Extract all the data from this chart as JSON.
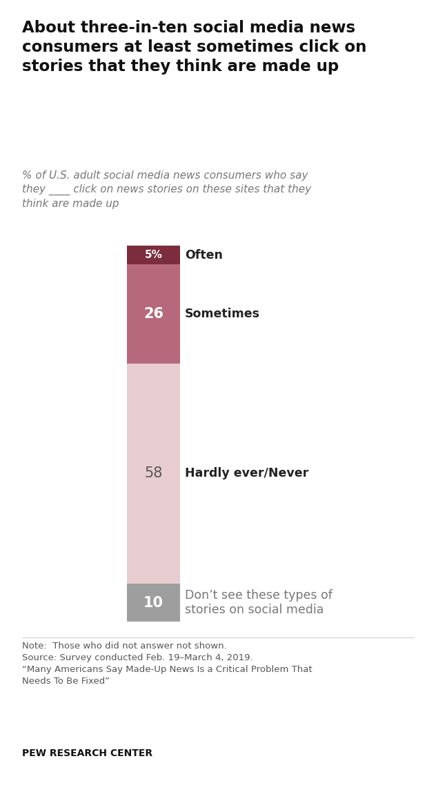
{
  "title": "About three-in-ten social media news\nconsumers at least sometimes click on\nstories that they think are made up",
  "subtitle": "% of U.S. adult social media news consumers who say\nthey ____ click on news stories on these sites that they\nthink are made up",
  "categories": [
    "Often",
    "Sometimes",
    "Hardly ever/Never",
    "Don’t see these types of\nstories on social media"
  ],
  "values": [
    5,
    26,
    58,
    10
  ],
  "colors": [
    "#7b2d3e",
    "#b5697a",
    "#e8cdd0",
    "#9e9e9e"
  ],
  "bar_labels": [
    "5%",
    "26",
    "58",
    "10"
  ],
  "label_colors": [
    "#ffffff",
    "#ffffff",
    "#555555",
    "#ffffff"
  ],
  "label_fontweights": [
    "bold",
    "bold",
    "normal",
    "bold"
  ],
  "cat_fontweights": [
    "bold",
    "bold",
    "bold",
    "normal"
  ],
  "cat_colors": [
    "#222222",
    "#222222",
    "#222222",
    "#777777"
  ],
  "note": "Note:  Those who did not answer not shown.\nSource: Survey conducted Feb. 19–March 4, 2019.\n“Many Americans Say Made-Up News Is a Critical Problem That\nNeeds To Be Fixed”",
  "source_bold": "PEW RESEARCH CENTER",
  "background_color": "#ffffff",
  "title_fontsize": 16.5,
  "subtitle_fontsize": 11,
  "label_fontsize": 15,
  "label_fontsize_small": 11,
  "note_fontsize": 9.5,
  "category_fontsize": 12.5
}
